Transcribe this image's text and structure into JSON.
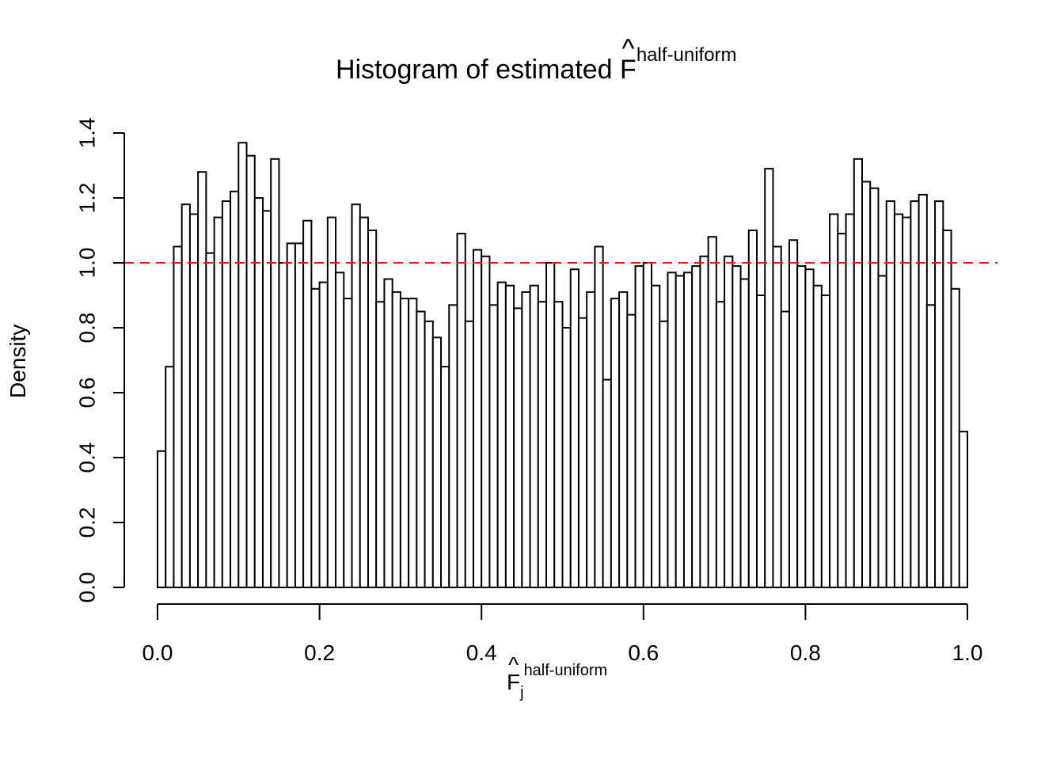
{
  "title": {
    "main": "Histogram of estimated ",
    "symbol": "F",
    "hat": "^",
    "superscript": "half-uniform"
  },
  "xlabel": {
    "symbol": "F",
    "hat": "^",
    "subscript": "j",
    "superscript": "half-uniform"
  },
  "ylabel": "Density",
  "colors": {
    "bars_stroke": "#000000",
    "bars_fill": "#ffffff",
    "reference_line": "#e41a1c"
  },
  "chart_data": {
    "type": "bar",
    "bin_start": 0.0,
    "bin_width": 0.01,
    "values": [
      0.42,
      0.68,
      1.05,
      1.18,
      1.15,
      1.28,
      1.03,
      1.14,
      1.19,
      1.22,
      1.37,
      1.33,
      1.2,
      1.16,
      1.32,
      1.0,
      1.06,
      1.06,
      1.13,
      0.92,
      0.94,
      1.14,
      0.97,
      0.89,
      1.18,
      1.14,
      1.1,
      0.88,
      0.95,
      0.91,
      0.89,
      0.89,
      0.85,
      0.82,
      0.77,
      0.68,
      0.87,
      1.09,
      0.82,
      1.04,
      1.02,
      0.87,
      0.94,
      0.93,
      0.86,
      0.91,
      0.93,
      0.88,
      1.0,
      0.88,
      0.8,
      0.98,
      0.83,
      0.91,
      1.05,
      0.64,
      0.89,
      0.91,
      0.84,
      0.99,
      1.0,
      0.93,
      0.82,
      0.97,
      0.96,
      0.97,
      0.99,
      1.02,
      1.08,
      0.88,
      1.02,
      0.99,
      0.95,
      1.1,
      0.9,
      1.29,
      1.05,
      0.85,
      1.07,
      0.99,
      0.98,
      0.93,
      0.9,
      1.15,
      1.09,
      1.15,
      1.32,
      1.25,
      1.23,
      0.96,
      1.19,
      1.15,
      1.14,
      1.19,
      1.21,
      0.87,
      1.19,
      1.1,
      0.92,
      0.48
    ],
    "xlim": [
      0.0,
      1.0
    ],
    "ylim": [
      0.0,
      1.4
    ],
    "x_ticks": [
      "0.0",
      "0.2",
      "0.4",
      "0.6",
      "0.8",
      "1.0"
    ],
    "y_ticks": [
      "0.0",
      "0.2",
      "0.4",
      "0.6",
      "0.8",
      "1.0",
      "1.2",
      "1.4"
    ],
    "reference_line": {
      "y": 1.0,
      "style": "dashed"
    }
  }
}
